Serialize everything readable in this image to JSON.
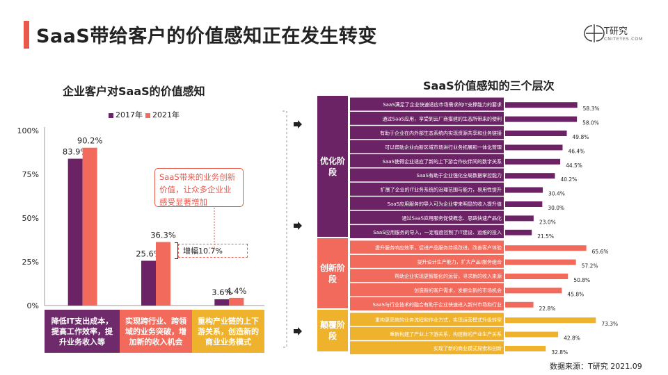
{
  "title": "SaaS带给客户的价值感知正在发生转变",
  "logo": {
    "name": "T研究",
    "url": "CNITEYES.COM"
  },
  "source": "数据来源：T研究 2021.09",
  "colors": {
    "accent": "#e8594c",
    "dark": "#6b2365",
    "red": "#f26a5b",
    "yellow": "#efb22c",
    "purple_box": "#6f2a6b"
  },
  "left": {
    "subtitle": "企业客户对SaaS的价值感知",
    "callout": "SaaS带来的业务创新价值，让众多企业业感受显著增加",
    "increase_label": "增幅10.7%",
    "categories": [
      "降低IT支出成本，提高工作效率，提升业务收入等",
      "实现跨行业、跨领域的业务突破，增加新的收入机会",
      "重构产业链的上下游关系，创造新的商业业务模式"
    ]
  },
  "right": {
    "subtitle": "SaaS价值感知的三个层次",
    "stages": [
      {
        "label": "优化阶段",
        "count": 10,
        "color": "#6b2365"
      },
      {
        "label": "创新阶段",
        "count": 5,
        "color": "#f26a5b"
      },
      {
        "label": "颠覆阶段",
        "count": 3,
        "color": "#efb22c"
      }
    ]
  },
  "chart_data": [
    {
      "type": "bar",
      "title": "企业客户对SaaS的价值感知",
      "categories": [
        "降低IT支出成本，提高工作效率，提升业务收入等",
        "实现跨行业、跨领域的业务突破，增加新的收入机会",
        "重构产业链的上下游关系，创造新的商业业务模式"
      ],
      "series": [
        {
          "name": "2017年",
          "values": [
            83.9,
            25.6,
            3.6
          ],
          "labels": [
            "83.9%",
            "25.6%",
            "3.6%"
          ],
          "color": "#6b2365"
        },
        {
          "name": "2021年",
          "values": [
            90.2,
            36.3,
            4.4
          ],
          "labels": [
            "90.2%",
            "36.3%",
            "4.4%"
          ],
          "color": "#f26a5b"
        }
      ],
      "yticks": [
        "0%",
        "25%",
        "50%",
        "75%",
        "100%"
      ],
      "ylim": [
        0,
        100
      ],
      "legend": "top"
    },
    {
      "type": "bar",
      "orientation": "horizontal",
      "title": "SaaS价值感知的三个层次",
      "categories": [
        "SaaS满足了企业快速适应市场需求的IT支撑能力的要求",
        "通过SaaS应用，享受到云厂商搭建的生态所带来的便利",
        "有助于企业在内外部生态系统内实现资源共享和业务链接",
        "可以帮助企业向新区域市场进行业务拓展和一体化管理",
        "SaaS使得企业适应了新的上下游合作伙伴间的数字关系",
        "SaaS有助于企业强化全局数据掌控能力",
        "扩展了企业的IT业务系统的治理范围与能力，易用性提升",
        "SaaS应用服务的导入可为企业带来明显的收入提升值",
        "通过SaaS应用服务促使概念、思路快速产品化",
        "SaaS应用服务的导入，一定程度控制了IT建设、运维的投入",
        "提升服务响应效率，促进产品服务持续改进，改善客户体验",
        "提升设计生产能力，扩大产品/服务组合",
        "帮助企业实现更智能化的运营，寻求新的收入来源",
        "创造新的客户需求，发掘全新的市场机会",
        "SaaS与行业技术的融合有助于企业快速进入新兴市场和行业",
        "重构更高效的业务流程和作业方式，实现运营模式升级转型",
        "重新构建了产业上下游关系，构建新的产业生产关系",
        "实现了新的商业模式探索和创新"
      ],
      "values": [
        58.3,
        58.0,
        49.8,
        46.4,
        44.5,
        40.2,
        30.4,
        30.0,
        23.0,
        21.5,
        65.6,
        57.2,
        50.8,
        45.8,
        22.8,
        73.3,
        42.8,
        32.8
      ],
      "labels": [
        "58.3%",
        "58.0%",
        "49.8%",
        "46.4%",
        "44.5%",
        "40.2%",
        "30.4%",
        "30.0%",
        "23.0%",
        "21.5%",
        "65.6%",
        "57.2%",
        "50.8%",
        "45.8%",
        "22.8%",
        "73.3%",
        "42.8%",
        "32.8%"
      ],
      "groups": [
        "优化阶段",
        "创新阶段",
        "颠覆阶段"
      ],
      "group_sizes": [
        10,
        5,
        3
      ],
      "xlim": [
        0,
        80
      ]
    }
  ]
}
